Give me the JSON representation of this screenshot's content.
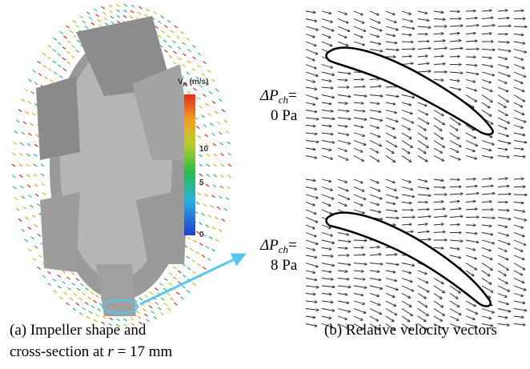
{
  "colorbar": {
    "label_main": "V",
    "label_sub": "R",
    "label_unit": " (m/s)",
    "ticks": [
      "10",
      "5",
      "0"
    ]
  },
  "panels": [
    {
      "symbol": "ΔP",
      "subscript": "ch",
      "equals": "=",
      "value": "0 Pa"
    },
    {
      "symbol": "ΔP",
      "subscript": "ch",
      "equals": "=",
      "value": "8 Pa"
    }
  ],
  "captions": {
    "a_line1": "(a) Impeller shape and",
    "a_line2_start": "cross-section at ",
    "a_line2_var": "r",
    "a_line2_end": " = 17 mm",
    "b": "(b) Relative velocity vectors"
  }
}
